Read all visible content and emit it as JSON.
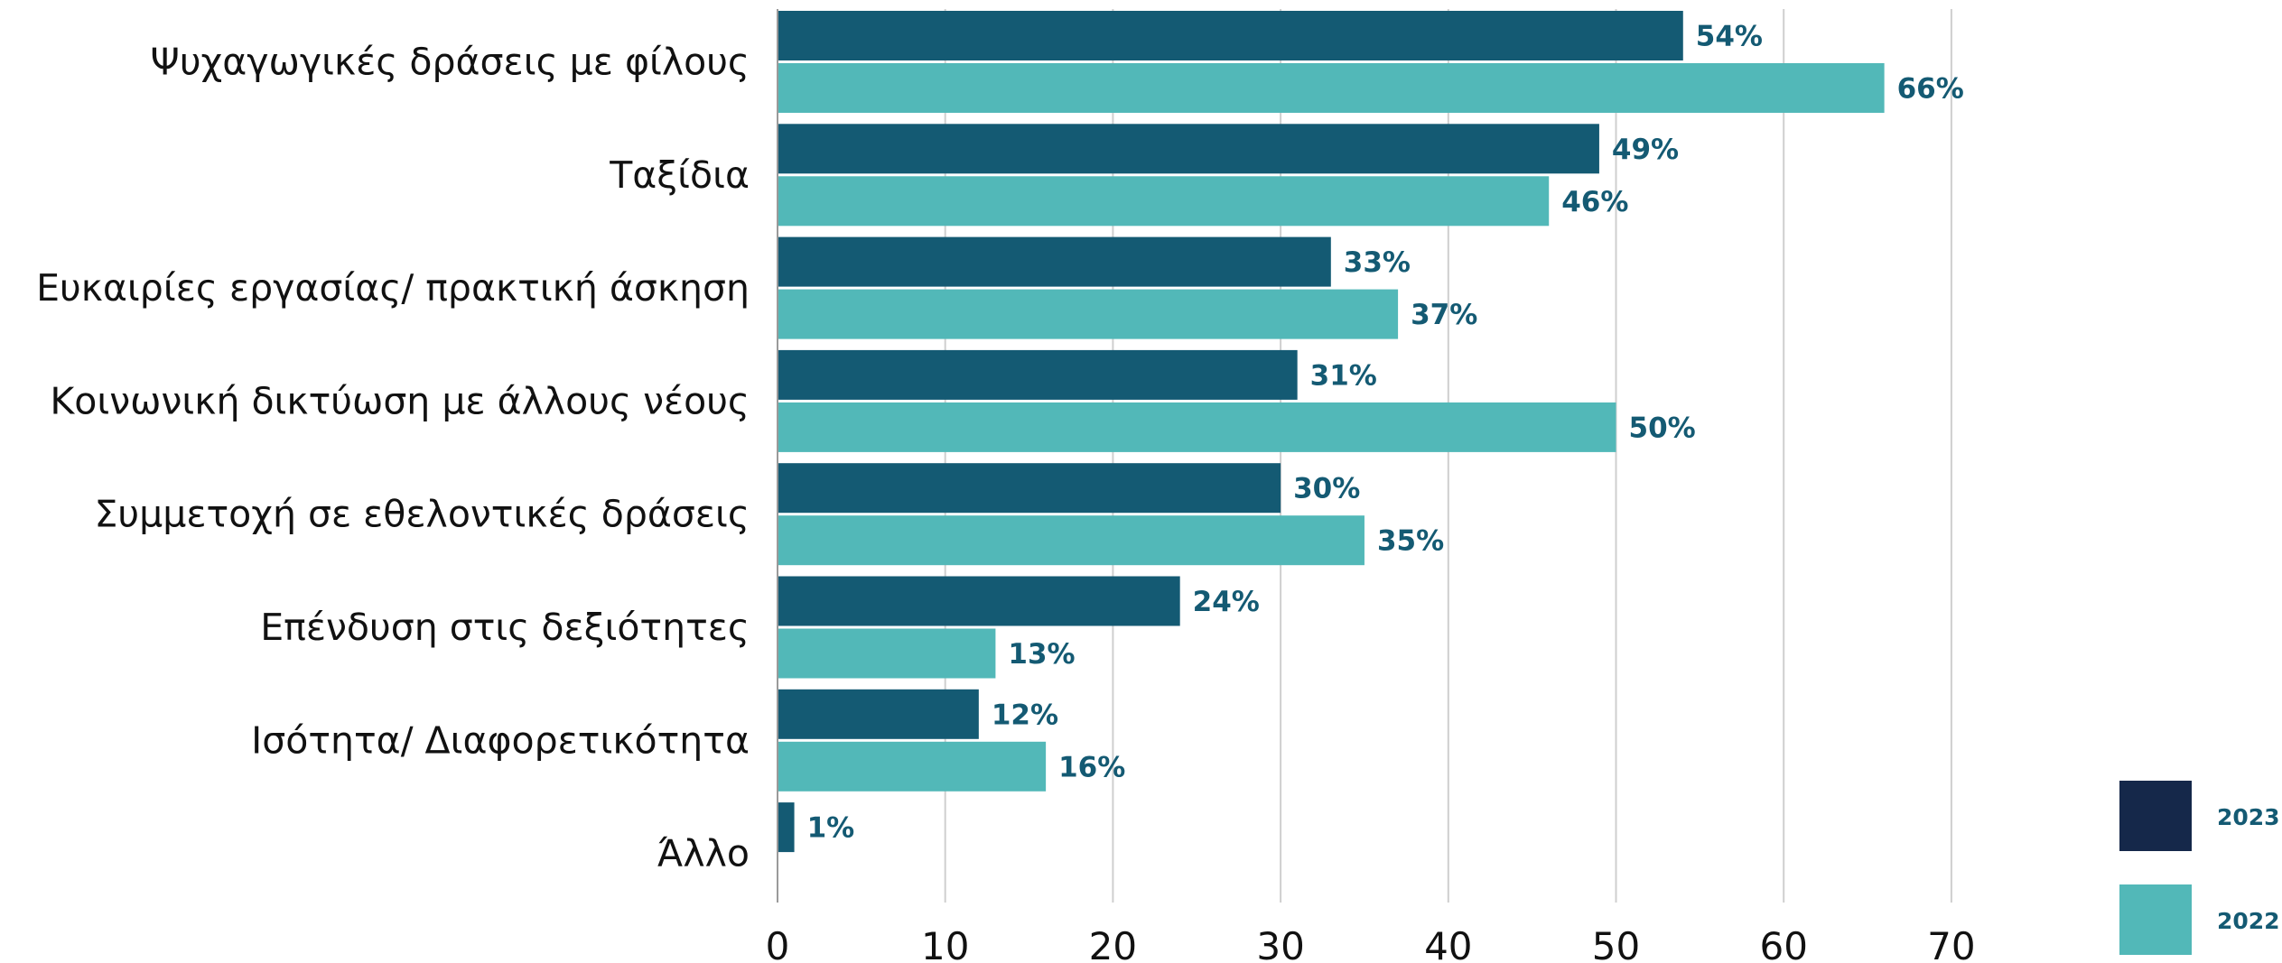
{
  "chart_data": {
    "type": "bar",
    "orientation": "horizontal",
    "categories": [
      "Ψυχαγωγικές δράσεις με φίλους",
      "Ταξίδια",
      "Ευκαιρίες εργασίας/ πρακτική άσκηση",
      "Κοινωνική δικτύωση με άλλους νέους",
      "Συμμετοχή σε εθελοντικές δράσεις",
      "Επένδυση στις δεξιότητες",
      "Ισότητα/ Διαφορετικότητα",
      "Άλλο"
    ],
    "series": [
      {
        "name": "2023",
        "color": "#145a73",
        "legend_color": "#15284a",
        "values": [
          54,
          49,
          33,
          31,
          30,
          24,
          12,
          1
        ],
        "labels": [
          "54%",
          "49%",
          "33%",
          "31%",
          "30%",
          "24%",
          "12%",
          "1%"
        ]
      },
      {
        "name": "2022",
        "color": "#52b8b8",
        "legend_color": "#52b8b8",
        "values": [
          66,
          46,
          37,
          50,
          35,
          13,
          16,
          null
        ],
        "labels": [
          "66%",
          "46%",
          "37%",
          "50%",
          "35%",
          "13%",
          "16%",
          null
        ]
      }
    ],
    "xlim": [
      0,
      70
    ],
    "xticks": [
      0,
      10,
      20,
      30,
      40,
      50,
      60,
      70
    ],
    "xlabel": "",
    "ylabel": "",
    "title": "",
    "grid": "vertical",
    "legend": "bottom-right",
    "data_label_color": "#145a73",
    "grid_color": "#cfcfcf"
  }
}
